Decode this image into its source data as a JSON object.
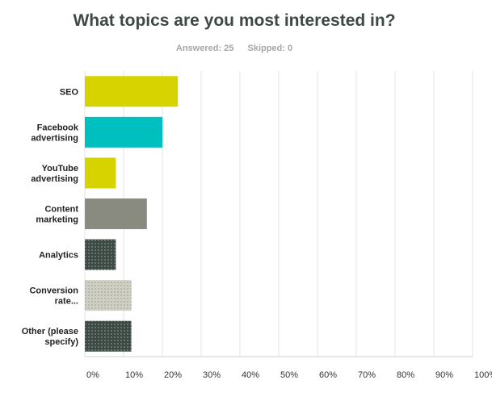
{
  "header": {
    "title": "What topics are you most interested in?",
    "answered": "Answered: 25",
    "skipped": "Skipped: 0"
  },
  "chart_data": {
    "type": "bar",
    "orientation": "horizontal",
    "title": "What topics are you most interested in?",
    "categories": [
      [
        "SEO"
      ],
      [
        "Facebook",
        "advertising"
      ],
      [
        "YouTube",
        "advertising"
      ],
      [
        "Content",
        "marketing"
      ],
      [
        "Analytics"
      ],
      [
        "Conversion",
        "rate..."
      ],
      [
        "Other (please",
        "specify)"
      ]
    ],
    "values": [
      24,
      20,
      8,
      16,
      8,
      12,
      12
    ],
    "colors": [
      "#d6d300",
      "#00bfbf",
      "#d6d300",
      "#8a8b80",
      "#3d4a44",
      "#cfd0c3",
      "#3d4a44"
    ],
    "patterns": [
      "solid",
      "solid",
      "solid",
      "solid",
      "dots-light",
      "dots-dark",
      "dots-light"
    ],
    "xlim": [
      0,
      100
    ],
    "xticks": [
      "0%",
      "10%",
      "20%",
      "30%",
      "40%",
      "50%",
      "60%",
      "70%",
      "80%",
      "90%",
      "100%"
    ],
    "grid": true
  }
}
